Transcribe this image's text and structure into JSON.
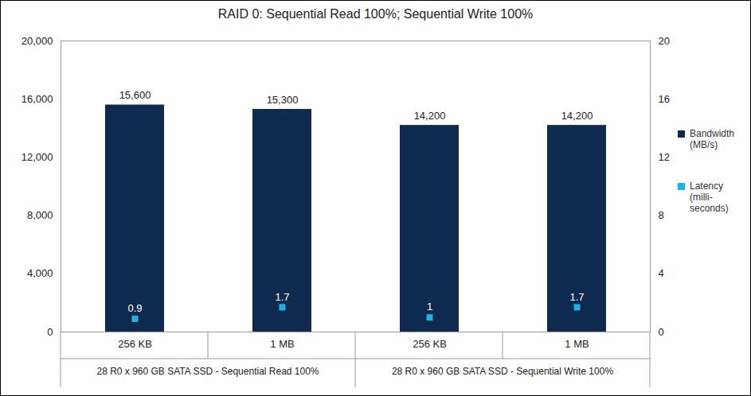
{
  "chart_data": {
    "type": "bar",
    "title": "RAID 0: Sequential Read 100%; Sequential Write 100%",
    "categories": [
      "256 KB",
      "1 MB",
      "256 KB",
      "1 MB"
    ],
    "groups": [
      "28 R0 x 960 GB SATA SSD - Sequential Read 100%",
      "28 R0 x 960 GB SATA SSD - Sequential Read 100%",
      "28 R0 x 960 GB SATA SSD - Sequential Write 100%",
      "28 R0 x 960 GB SATA SSD - Sequential Write 100%"
    ],
    "series": [
      {
        "name": "Bandwidth (MB/s)",
        "type": "bar",
        "color": "#0e2a4f",
        "values": [
          15600,
          15300,
          14200,
          14200
        ],
        "value_labels": [
          "15,600",
          "15,300",
          "14,200",
          "14,200"
        ]
      },
      {
        "name": "Latency (milli-seconds)",
        "type": "scatter",
        "axis": "y2",
        "marker": "square",
        "color": "#1db3e8",
        "values": [
          0.9,
          1.7,
          1,
          1.7
        ]
      }
    ],
    "ylim": [
      0,
      20000
    ],
    "yticks": [
      0,
      {
        "value": 4000,
        "label": "4,000"
      },
      {
        "value": 8000,
        "label": "8,000"
      },
      {
        "value": 12000,
        "label": "12,000"
      },
      {
        "value": 16000,
        "label": "16,000"
      },
      {
        "value": 20000,
        "label": "20,000"
      }
    ],
    "y2lim": [
      0,
      20
    ],
    "y2ticks": [
      0,
      4,
      8,
      12,
      16,
      20
    ],
    "grid": false,
    "legend": "right",
    "data_labels": true
  }
}
